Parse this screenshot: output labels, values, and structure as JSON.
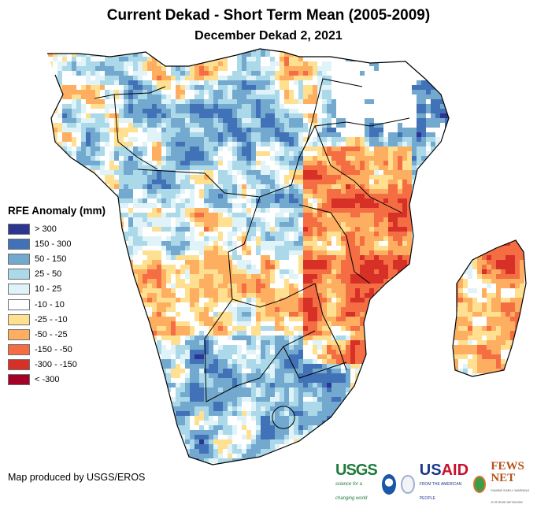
{
  "title": "Current Dekad - Short Term Mean (2005-2009)",
  "subtitle": "December Dekad 2, 2021",
  "legend": {
    "title": "RFE Anomaly (mm)",
    "items": [
      {
        "label": "> 300",
        "color": "#2c3590"
      },
      {
        "label": "150 - 300",
        "color": "#4172b8"
      },
      {
        "label": "50 - 150",
        "color": "#74a9cf"
      },
      {
        "label": "25 - 50",
        "color": "#abd9e9"
      },
      {
        "label": "10 - 25",
        "color": "#e0f3f8"
      },
      {
        "label": "-10 - 10",
        "color": "#ffffff"
      },
      {
        "label": "-25 - -10",
        "color": "#fee090"
      },
      {
        "label": "-50 - -25",
        "color": "#fdae61"
      },
      {
        "label": "-150 - -50",
        "color": "#f46d43"
      },
      {
        "label": "-300 - -150",
        "color": "#d73027"
      },
      {
        "label": "< -300",
        "color": "#a50026"
      }
    ]
  },
  "credit": "Map produced by USGS/EROS",
  "logos": {
    "usgs": "USGS",
    "usgs_tagline": "science for a changing world",
    "usaid_a": "US",
    "usaid_b": "AID",
    "usaid_tagline": "FROM THE AMERICAN PEOPLE",
    "fews": "FEWS NET",
    "fews_tagline": "FAMINE EARLY WARNING SYSTEMS NETWORK"
  }
}
